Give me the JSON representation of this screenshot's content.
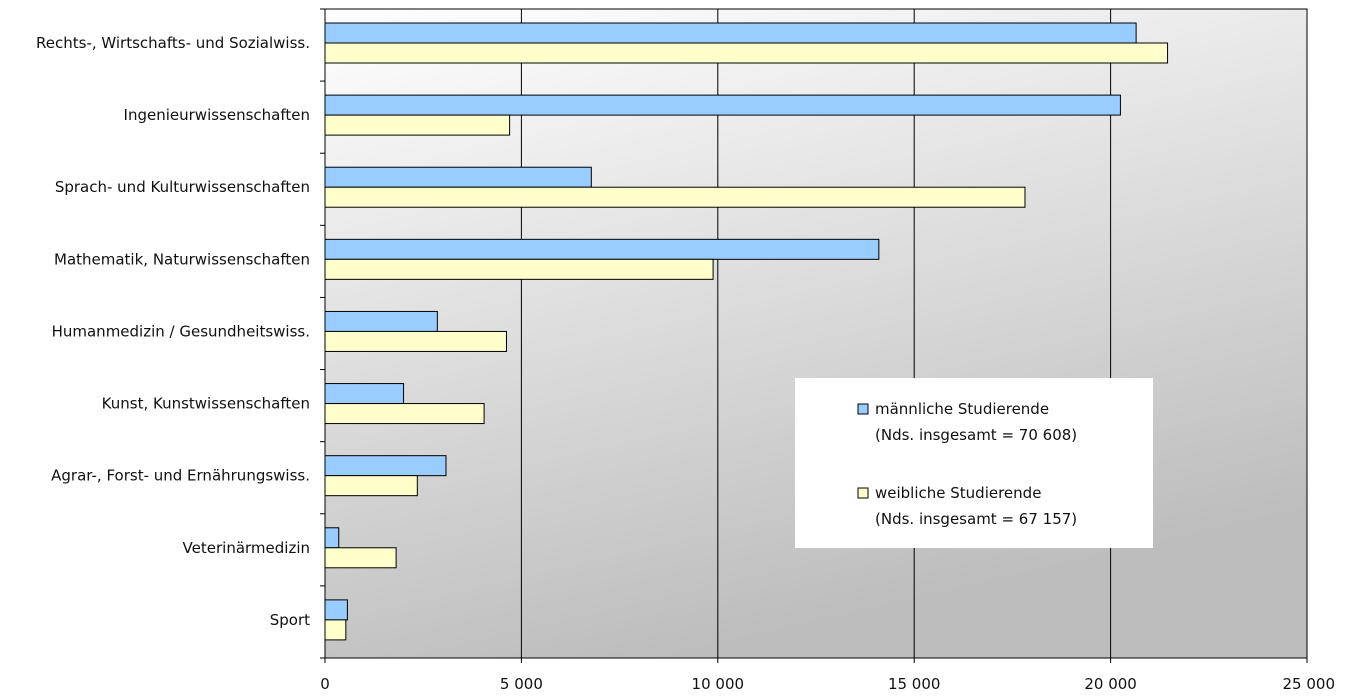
{
  "chart_data": {
    "type": "bar",
    "orientation": "horizontal",
    "categories": [
      "Rechts-, Wirtschafts- und Sozialwiss.",
      "Ingenieurwissenschaften",
      "Sprach- und Kulturwissenschaften",
      "Mathematik, Naturwissenschaften",
      "Humanmedizin / Gesundheitswiss.",
      "Kunst, Kunstwissenschaften",
      "Agrar-, Forst- und Ernährungswiss.",
      "Veterinärmedizin",
      "Sport"
    ],
    "series": [
      {
        "name": "männliche Studierende",
        "note": "(Nds. insgesamt = 70 608)",
        "color": "#99ccff",
        "values": [
          20650,
          20250,
          6780,
          14100,
          2860,
          2000,
          3080,
          350,
          570
        ]
      },
      {
        "name": "weibliche Studierende",
        "note": "(Nds. insgesamt = 67 157)",
        "color": "#ffffcc",
        "values": [
          21450,
          4700,
          17820,
          9880,
          4620,
          4050,
          2350,
          1810,
          530
        ]
      }
    ],
    "xlim": [
      0,
      25000
    ],
    "xticks": [
      0,
      5000,
      10000,
      15000,
      20000,
      25000
    ],
    "xtick_labels": [
      "0",
      "5 000",
      "10 000",
      "15 000",
      "20 000",
      "25 000"
    ],
    "title": "",
    "xlabel": "",
    "ylabel": "",
    "grid": true,
    "legend_position": "right-middle"
  }
}
